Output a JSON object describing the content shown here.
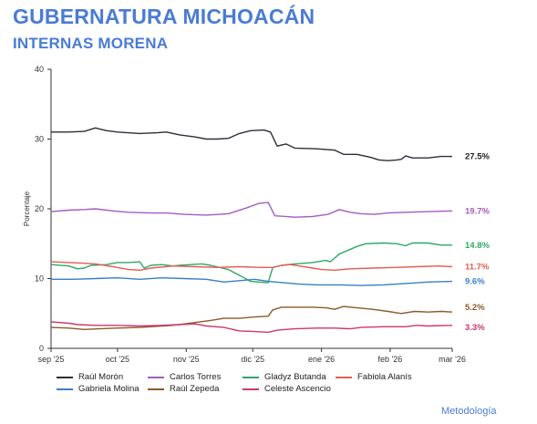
{
  "header": {
    "title": "GUBERNATURA MICHOACÁN",
    "subtitle": "INTERNAS MORENA"
  },
  "footer": {
    "methodology_link": "Metodología"
  },
  "chart_data": {
    "type": "line",
    "ylabel": "Porcentaje",
    "ylim": [
      0,
      40
    ],
    "yticks": [
      "0",
      "10",
      "20",
      "30",
      "40"
    ],
    "x_ticks": [
      {
        "label": "sep '25",
        "day": 0
      },
      {
        "label": "oct '25",
        "day": 30
      },
      {
        "label": "nov '25",
        "day": 61
      },
      {
        "label": "dic '25",
        "day": 91
      },
      {
        "label": "ene '26",
        "day": 122
      },
      {
        "label": "feb '26",
        "day": 153
      },
      {
        "label": "mar '26",
        "day": 181
      }
    ],
    "x_range": [
      0,
      181
    ],
    "grid": false,
    "legend_position": "bottom",
    "series": [
      {
        "name": "Raúl Morón",
        "color": "#2b2f38",
        "end_label": "27.5%",
        "points": [
          [
            0,
            31.0
          ],
          [
            8,
            31.0
          ],
          [
            15,
            31.1
          ],
          [
            20,
            31.6
          ],
          [
            25,
            31.2
          ],
          [
            30,
            31.0
          ],
          [
            40,
            30.8
          ],
          [
            48,
            30.9
          ],
          [
            52,
            31.0
          ],
          [
            58,
            30.6
          ],
          [
            65,
            30.3
          ],
          [
            70,
            30.0
          ],
          [
            75,
            30.0
          ],
          [
            80,
            30.1
          ],
          [
            85,
            30.8
          ],
          [
            90,
            31.2
          ],
          [
            96,
            31.3
          ],
          [
            99,
            31.0
          ],
          [
            102,
            29.0
          ],
          [
            106,
            29.3
          ],
          [
            110,
            28.7
          ],
          [
            120,
            28.6
          ],
          [
            128,
            28.4
          ],
          [
            132,
            27.8
          ],
          [
            138,
            27.8
          ],
          [
            144,
            27.4
          ],
          [
            148,
            27.0
          ],
          [
            152,
            26.9
          ],
          [
            156,
            27.0
          ],
          [
            158,
            27.1
          ],
          [
            160,
            27.6
          ],
          [
            163,
            27.3
          ],
          [
            170,
            27.3
          ],
          [
            176,
            27.5
          ],
          [
            181,
            27.5
          ]
        ]
      },
      {
        "name": "Carlos Torres",
        "color": "#a35bc0",
        "end_label": "19.7%",
        "points": [
          [
            0,
            19.6
          ],
          [
            8,
            19.8
          ],
          [
            15,
            19.9
          ],
          [
            20,
            20.0
          ],
          [
            28,
            19.7
          ],
          [
            35,
            19.5
          ],
          [
            45,
            19.4
          ],
          [
            52,
            19.4
          ],
          [
            60,
            19.2
          ],
          [
            70,
            19.1
          ],
          [
            80,
            19.3
          ],
          [
            88,
            20.1
          ],
          [
            94,
            20.8
          ],
          [
            98,
            20.9
          ],
          [
            101,
            19.0
          ],
          [
            106,
            18.9
          ],
          [
            110,
            18.8
          ],
          [
            118,
            18.9
          ],
          [
            125,
            19.2
          ],
          [
            130,
            19.9
          ],
          [
            135,
            19.5
          ],
          [
            140,
            19.3
          ],
          [
            146,
            19.2
          ],
          [
            152,
            19.4
          ],
          [
            160,
            19.5
          ],
          [
            170,
            19.6
          ],
          [
            181,
            19.7
          ]
        ]
      },
      {
        "name": "Gladyz Butanda",
        "color": "#2ea866",
        "end_label": "14.8%",
        "points": [
          [
            0,
            12.0
          ],
          [
            8,
            11.8
          ],
          [
            12,
            11.4
          ],
          [
            15,
            11.5
          ],
          [
            18,
            11.9
          ],
          [
            25,
            12.0
          ],
          [
            30,
            12.3
          ],
          [
            35,
            12.3
          ],
          [
            40,
            12.4
          ],
          [
            42,
            11.5
          ],
          [
            45,
            11.9
          ],
          [
            50,
            12.0
          ],
          [
            55,
            11.8
          ],
          [
            58,
            11.9
          ],
          [
            63,
            12.0
          ],
          [
            68,
            12.1
          ],
          [
            72,
            11.9
          ],
          [
            80,
            11.3
          ],
          [
            86,
            10.3
          ],
          [
            90,
            9.6
          ],
          [
            98,
            9.4
          ],
          [
            100,
            11.6
          ],
          [
            104,
            11.9
          ],
          [
            110,
            12.1
          ],
          [
            118,
            12.3
          ],
          [
            124,
            12.6
          ],
          [
            126,
            12.4
          ],
          [
            130,
            13.5
          ],
          [
            138,
            14.6
          ],
          [
            142,
            15.0
          ],
          [
            150,
            15.1
          ],
          [
            156,
            15.0
          ],
          [
            160,
            14.7
          ],
          [
            163,
            15.1
          ],
          [
            170,
            15.1
          ],
          [
            176,
            14.8
          ],
          [
            181,
            14.8
          ]
        ]
      },
      {
        "name": "Fabiola Alanís",
        "color": "#e25d52",
        "end_label": "11.7%",
        "points": [
          [
            0,
            12.4
          ],
          [
            8,
            12.3
          ],
          [
            15,
            12.2
          ],
          [
            20,
            12.1
          ],
          [
            28,
            11.7
          ],
          [
            35,
            11.3
          ],
          [
            40,
            11.2
          ],
          [
            45,
            11.5
          ],
          [
            55,
            11.8
          ],
          [
            65,
            11.7
          ],
          [
            75,
            11.6
          ],
          [
            85,
            11.7
          ],
          [
            95,
            11.6
          ],
          [
            100,
            11.6
          ],
          [
            104,
            11.9
          ],
          [
            108,
            12.0
          ],
          [
            112,
            11.8
          ],
          [
            118,
            11.5
          ],
          [
            122,
            11.3
          ],
          [
            128,
            11.2
          ],
          [
            135,
            11.4
          ],
          [
            145,
            11.5
          ],
          [
            155,
            11.6
          ],
          [
            165,
            11.7
          ],
          [
            175,
            11.8
          ],
          [
            181,
            11.7
          ]
        ]
      },
      {
        "name": "Gabriela Molina",
        "color": "#3a7fc3",
        "end_label": "9.6%",
        "points": [
          [
            0,
            9.9
          ],
          [
            10,
            9.9
          ],
          [
            20,
            10.0
          ],
          [
            30,
            10.1
          ],
          [
            40,
            9.9
          ],
          [
            50,
            10.1
          ],
          [
            60,
            10.0
          ],
          [
            70,
            9.9
          ],
          [
            78,
            9.5
          ],
          [
            85,
            9.7
          ],
          [
            92,
            9.9
          ],
          [
            98,
            9.6
          ],
          [
            105,
            9.4
          ],
          [
            112,
            9.2
          ],
          [
            120,
            9.1
          ],
          [
            130,
            9.1
          ],
          [
            140,
            9.0
          ],
          [
            150,
            9.1
          ],
          [
            160,
            9.3
          ],
          [
            170,
            9.5
          ],
          [
            181,
            9.6
          ]
        ]
      },
      {
        "name": "Raúl Zepeda",
        "color": "#8b5a2b",
        "end_label": "5.2%",
        "points": [
          [
            0,
            3.0
          ],
          [
            8,
            2.9
          ],
          [
            15,
            2.7
          ],
          [
            22,
            2.8
          ],
          [
            30,
            2.9
          ],
          [
            40,
            3.0
          ],
          [
            50,
            3.2
          ],
          [
            55,
            3.3
          ],
          [
            65,
            3.7
          ],
          [
            72,
            4.0
          ],
          [
            78,
            4.3
          ],
          [
            85,
            4.3
          ],
          [
            92,
            4.5
          ],
          [
            98,
            4.6
          ],
          [
            100,
            5.5
          ],
          [
            104,
            5.9
          ],
          [
            110,
            5.9
          ],
          [
            118,
            5.9
          ],
          [
            124,
            5.8
          ],
          [
            128,
            5.6
          ],
          [
            132,
            6.0
          ],
          [
            138,
            5.8
          ],
          [
            145,
            5.6
          ],
          [
            152,
            5.3
          ],
          [
            158,
            5.0
          ],
          [
            164,
            5.3
          ],
          [
            170,
            5.2
          ],
          [
            176,
            5.3
          ],
          [
            181,
            5.2
          ]
        ]
      },
      {
        "name": "Celeste Ascencio",
        "color": "#d0366f",
        "end_label": "3.3%",
        "points": [
          [
            0,
            3.8
          ],
          [
            8,
            3.6
          ],
          [
            12,
            3.4
          ],
          [
            20,
            3.3
          ],
          [
            30,
            3.3
          ],
          [
            40,
            3.2
          ],
          [
            50,
            3.3
          ],
          [
            58,
            3.4
          ],
          [
            65,
            3.5
          ],
          [
            70,
            3.2
          ],
          [
            78,
            3.0
          ],
          [
            85,
            2.5
          ],
          [
            92,
            2.4
          ],
          [
            98,
            2.3
          ],
          [
            102,
            2.6
          ],
          [
            110,
            2.8
          ],
          [
            120,
            2.9
          ],
          [
            128,
            2.9
          ],
          [
            135,
            2.8
          ],
          [
            140,
            3.0
          ],
          [
            150,
            3.1
          ],
          [
            160,
            3.1
          ],
          [
            165,
            3.3
          ],
          [
            170,
            3.2
          ],
          [
            181,
            3.3
          ]
        ]
      }
    ]
  }
}
